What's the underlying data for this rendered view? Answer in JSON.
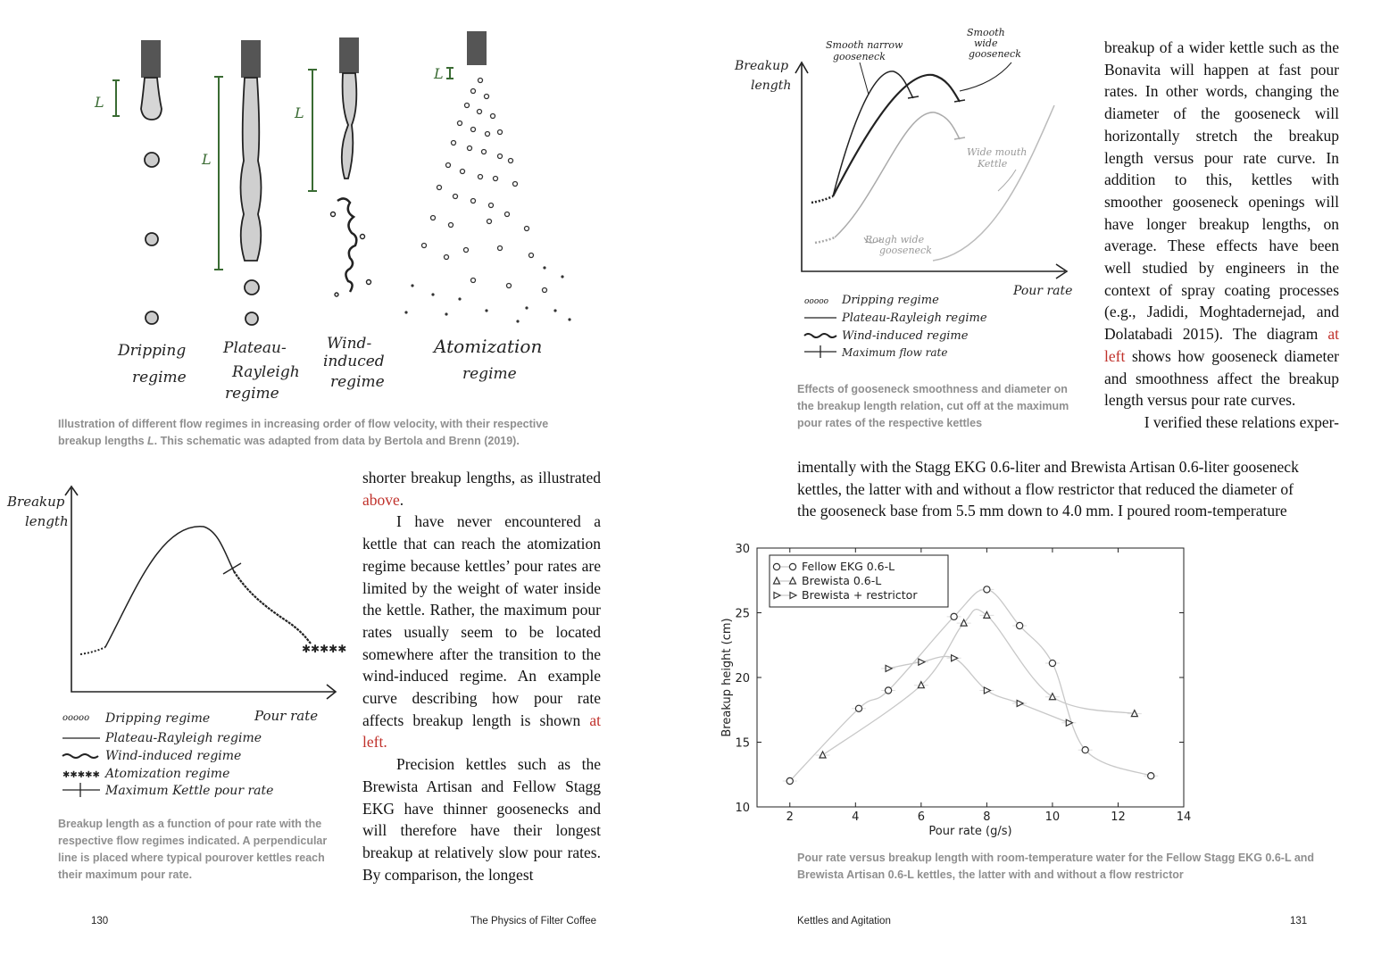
{
  "left_page": {
    "regimes_figure": {
      "labels": {
        "dripping": [
          "Dripping",
          "regime"
        ],
        "plateau": [
          "Plateau-",
          "Rayleigh",
          "regime"
        ],
        "wind": [
          "Wind-",
          "induced",
          "regime"
        ],
        "atomization": [
          "Atomization",
          "regime"
        ]
      },
      "length_symbol": "L",
      "caption_line1": "Illustration of different flow regimes in increasing order of flow velocity, with their respective",
      "caption_line2_pre": "breakup lengths ",
      "caption_line2_em": "L",
      "caption_line2_post": ". This schematic was adapted from data by Bertola and Brenn (2019)."
    },
    "curve_figure": {
      "ylabel": [
        "Breakup",
        "length"
      ],
      "xlabel": "Pour rate",
      "legend": [
        "Dripping regime",
        "Plateau-Rayleigh regime",
        "Wind-induced regime",
        "Atomization regime",
        "Maximum Kettle pour rate"
      ],
      "caption": [
        "Breakup length as a function of pour rate with the",
        "respective flow regimes indicated. A perpendicular",
        "line is placed where typical pourover kettles reach",
        "their maximum pour rate."
      ]
    },
    "text": {
      "p1_pre": "shorter breakup lengths, as illustrated ",
      "p1_link": "above",
      "p1_post": ".",
      "p2_pre": "I have never encountered a kettle that can reach the atomization regime because kettles’ pour rates are limited by the weight of water inside the kettle. Rather, the maximum pour rates usually seem to be located somewhere after the transition to the wind-induced regime. An example curve describing how pour rate affects breakup length is shown ",
      "p2_link": "at left.",
      "p3": "Precision kettles such as the Brewista Artisan and Fellow Stagg EKG have thinner goosenecks and will therefore have their longest breakup at relatively slow pour rates. By comparison, the longest"
    },
    "footer": {
      "page_number": "130",
      "book_title": "The Physics of Filter Coffee"
    }
  },
  "right_page": {
    "gooseneck_figure": {
      "ylabel": [
        "Breakup",
        "length"
      ],
      "xlabel": "Pour rate",
      "annotations": {
        "smooth_narrow": [
          "Smooth narrow",
          "gooseneck"
        ],
        "smooth_wide": [
          "Smooth",
          "wide",
          "gooseneck"
        ],
        "wide_mouth": [
          "Wide mouth",
          "Kettle"
        ],
        "rough_wide": [
          "Rough wide",
          "gooseneck"
        ]
      },
      "legend": [
        "Dripping regime",
        "Plateau-Rayleigh regime",
        "Wind-induced regime",
        "Maximum flow rate"
      ],
      "caption": [
        "Effects of gooseneck smoothness and diameter on",
        "the breakup length relation, cut off at the maximum",
        "pour rates of the respective kettles"
      ]
    },
    "text": {
      "col_p1_pre": "breakup of a wider kettle such as the Bonavita will happen at fast pour rates. In other words, changing the diameter of the gooseneck will horizontally stretch the breakup length versus pour rate curve. In addition to this, kettles with smoother gooseneck openings will have longer breakup lengths, on average. These effects have been well studied by engineers in the context of spray coating processes (e.g., Jadidi, Moghtadernejad, and Dolatabadi 2015). The diagram ",
      "col_p1_link": "at left",
      "col_p1_post": " shows how gooseneck diameter and smoothness affect the breakup length versus pour rate curves.",
      "col_p2": "I verified these relations exper-",
      "full_lines": [
        "imentally with the Stagg EKG 0.6-liter and Brewista Artisan 0.6-liter gooseneck",
        "kettles, the latter with and without a flow restrictor that reduced the diameter of",
        "the gooseneck base from 5.5 mm down to 4.0 mm. I poured room-temperature"
      ]
    },
    "chart_caption": [
      "Pour rate versus breakup length with room-temperature water for the Fellow Stagg EKG 0.6-L and",
      "Brewista Artisan 0.6-L kettles, the latter with and without a flow restrictor"
    ],
    "footer": {
      "chapter_title": "Kettles and Agitation",
      "page_number": "131"
    }
  },
  "chart_data": {
    "type": "scatter",
    "xlabel": "Pour rate (g/s)",
    "ylabel": "Breakup height (cm)",
    "xlim": [
      1,
      14
    ],
    "ylim": [
      10,
      30
    ],
    "xticks": [
      2,
      4,
      6,
      8,
      10,
      12,
      14
    ],
    "yticks": [
      10,
      15,
      20,
      25,
      30
    ],
    "legend_position": "top-left",
    "series": [
      {
        "name": "Fellow EKG 0.6-L",
        "marker": "circle",
        "x": [
          2,
          4.1,
          5,
          7,
          8,
          9,
          10,
          11,
          13
        ],
        "y": [
          12,
          17.6,
          19,
          24.7,
          26.8,
          24,
          21.1,
          14.4,
          12.4
        ]
      },
      {
        "name": "Brewista 0.6-L",
        "marker": "triangle-up",
        "x": [
          3,
          6,
          7.3,
          8,
          10,
          12.5
        ],
        "y": [
          14,
          19.4,
          24.2,
          24.8,
          18.5,
          17.2
        ]
      },
      {
        "name": "Brewista + restrictor",
        "marker": "triangle-right",
        "x": [
          5,
          6,
          7,
          8,
          9,
          10.5
        ],
        "y": [
          20.7,
          21.2,
          21.5,
          19,
          18,
          16.5
        ]
      }
    ]
  }
}
